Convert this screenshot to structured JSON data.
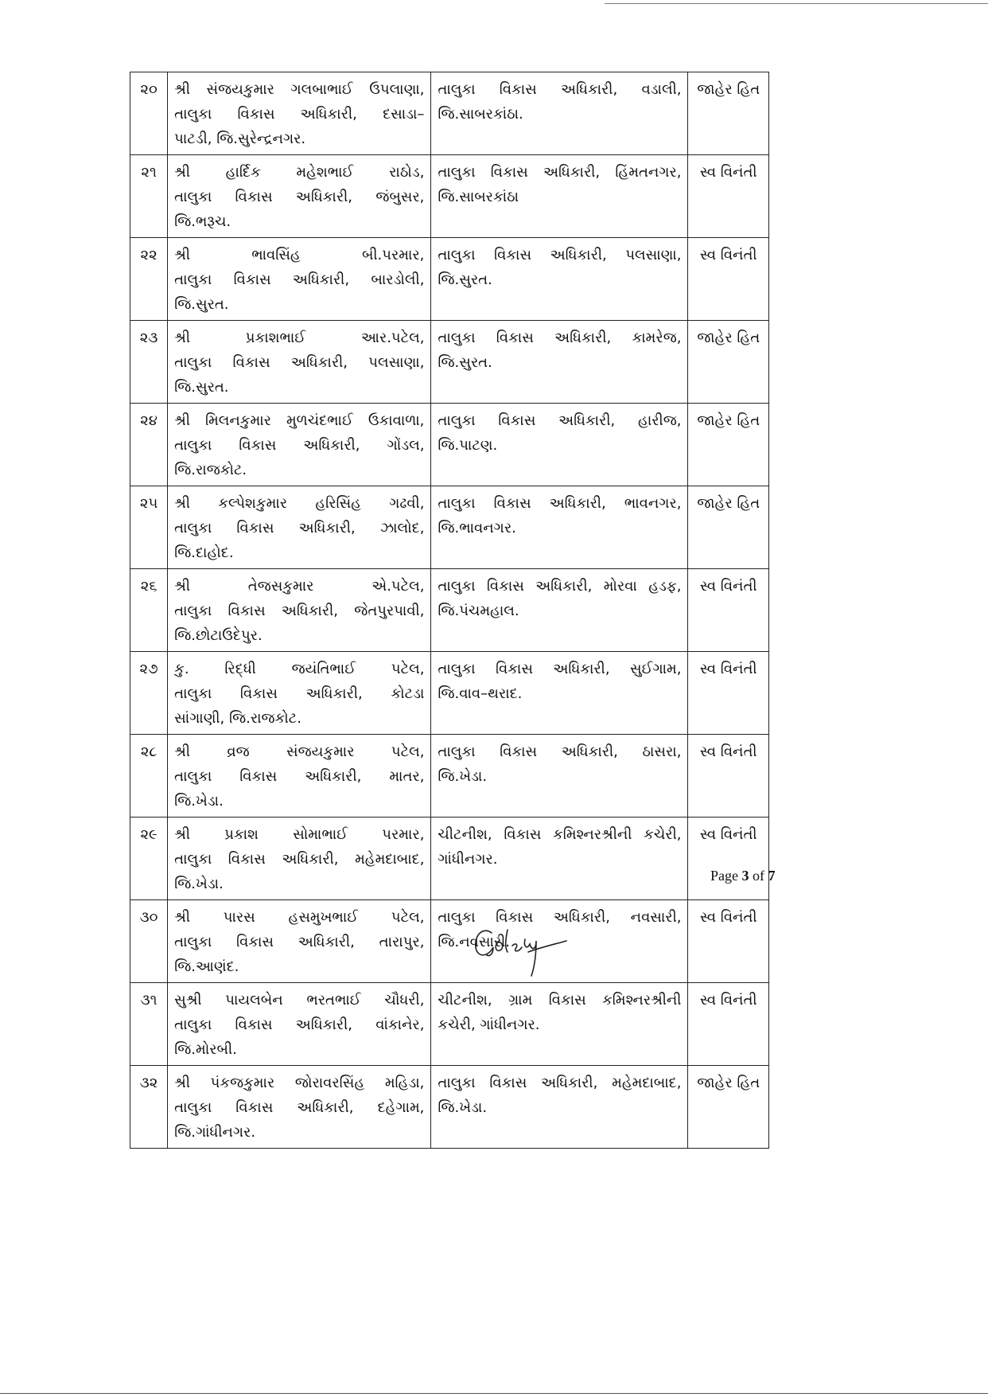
{
  "rows": [
    {
      "no": "૨૦",
      "name": [
        "શ્રી સંજયકુમાર ગલબાભાઈ ઉપલાણા,",
        "તાલુકા વિકાસ અધિકારી, દસાડા–",
        "પાટડી, જિ.સુરેન્દ્રનગર."
      ],
      "post": [
        "તાલુકા વિકાસ અધિકારી, વડાલી,",
        "જિ.સાબરકાંઠા."
      ],
      "reason": "જાહેર હિત"
    },
    {
      "no": "૨૧",
      "name": [
        "શ્રી હાર્દિક મહેશભાઈ રાઠોડ,",
        "તાલુકા વિકાસ અધિકારી, જંબુસર,",
        "જિ.ભરૂચ."
      ],
      "post": [
        "તાલુકા વિકાસ અધિકારી, હિંમતનગર,",
        "જિ.સાબરકાંઠા"
      ],
      "reason": "સ્વ વિનંતી"
    },
    {
      "no": "૨૨",
      "name": [
        "શ્રી ભાવસિંહ બી.પરમાર,",
        "તાલુકા વિકાસ અધિકારી, બારડોલી,",
        "જિ.સુરત."
      ],
      "post": [
        "તાલુકા વિકાસ અધિકારી, પલસાણા,",
        "જિ.સુરત."
      ],
      "reason": "સ્વ વિનંતી"
    },
    {
      "no": "૨૩",
      "name": [
        "શ્રી પ્રકાશભાઈ આર.પટેલ,",
        "તાલુકા વિકાસ અધિકારી, પલસાણા,",
        "જિ.સુરત."
      ],
      "post": [
        "તાલુકા વિકાસ અધિકારી, કામરેજ,",
        "જિ.સુરત."
      ],
      "reason": "જાહેર હિત"
    },
    {
      "no": "૨૪",
      "name": [
        "શ્રી મિલનકુમાર મુળચંદભાઈ ઉકાવાળા,",
        "તાલુકા વિકાસ અધિકારી, ગોંડલ,",
        "જિ.રાજકોટ."
      ],
      "post": [
        "તાલુકા વિકાસ અધિકારી, હારીજ,",
        "જિ.પાટણ."
      ],
      "reason": "જાહેર હિત"
    },
    {
      "no": "૨૫",
      "name": [
        "શ્રી કલ્પેશકુમાર હરિસિંહ ગઢવી,",
        "તાલુકા વિકાસ અધિકારી, ઝાલોદ,",
        "જિ.દાહોદ."
      ],
      "post": [
        "તાલુકા વિકાસ અધિકારી, ભાવનગર,",
        "જિ.ભાવનગર."
      ],
      "reason": "જાહેર હિત"
    },
    {
      "no": "૨૬",
      "name": [
        "શ્રી તેજસકુમાર એ.પટેલ,",
        "તાલુકા વિકાસ અધિકારી, જેતપુરપાવી,",
        "જિ.છોટાઉદેપુર."
      ],
      "post": [
        "તાલુકા વિકાસ અધિકારી, મોરવા હડફ,",
        "જિ.પંચમહાલ."
      ],
      "reason": "સ્વ વિનંતી"
    },
    {
      "no": "૨૭",
      "name": [
        "કુ. રિદ્ધી જયંતિભાઈ પટેલ,",
        "તાલુકા વિકાસ અધિકારી, કોટડા",
        "સાંગાણી, જિ.રાજકોટ."
      ],
      "post": [
        "તાલુકા વિકાસ અધિકારી, સુઈગામ,",
        "જિ.વાવ–થરાદ."
      ],
      "reason": "સ્વ વિનંતી"
    },
    {
      "no": "૨૮",
      "name": [
        "શ્રી વ્રજ સંજયકુમાર પટેલ,",
        "તાલુકા વિકાસ અધિકારી, માતર,",
        "જિ.ખેડા."
      ],
      "post": [
        "તાલુકા વિકાસ અધિકારી, ઠાસરા,",
        "જિ.ખેડા."
      ],
      "reason": "સ્વ વિનંતી"
    },
    {
      "no": "૨૯",
      "name": [
        "શ્રી પ્રકાશ સોમાભાઈ પરમાર,",
        "તાલુકા વિકાસ અધિકારી, મહેમદાબાદ,",
        "જિ.ખેડા."
      ],
      "post": [
        "ચીટનીશ, વિકાસ કમિશ્નરશ્રીની કચેરી,",
        "ગાંધીનગર."
      ],
      "reason": "સ્વ વિનંતી"
    },
    {
      "no": "૩૦",
      "name": [
        "શ્રી પારસ હસમુખભાઈ પટેલ,",
        "તાલુકા વિકાસ અધિકારી, તારાપુર,",
        "જિ.આણંદ."
      ],
      "post": [
        "તાલુકા વિકાસ અધિકારી, નવસારી,",
        "જિ.નવસારી."
      ],
      "reason": "સ્વ વિનંતી"
    },
    {
      "no": "૩૧",
      "name": [
        "સુશ્રી પાયલબેન ભરતભાઈ ચૌધરી,",
        "તાલુકા વિકાસ અધિકારી, વાંકાનેર,",
        "જિ.મોરબી."
      ],
      "post": [
        "ચીટનીશ, ગ્રામ વિકાસ કમિશ્નરશ્રીની",
        "કચેરી, ગાંધીનગર."
      ],
      "reason": "સ્વ વિનંતી"
    },
    {
      "no": "૩૨",
      "name": [
        "શ્રી પંકજકુમાર જોરાવરસિંહ મહિડા,",
        "તાલુકા વિકાસ અધિકારી, દહેગામ,",
        "જિ.ગાંધીનગર."
      ],
      "post": [
        "તાલુકા વિકાસ અધિકારી, મહેમદાબાદ,",
        "જિ.ખેડા."
      ],
      "reason": "જાહેર હિત"
    }
  ],
  "signature_text": "Goley",
  "footer": {
    "page_prefix": "Page ",
    "page_current": "3",
    "page_sep": " of ",
    "page_total": "7"
  }
}
